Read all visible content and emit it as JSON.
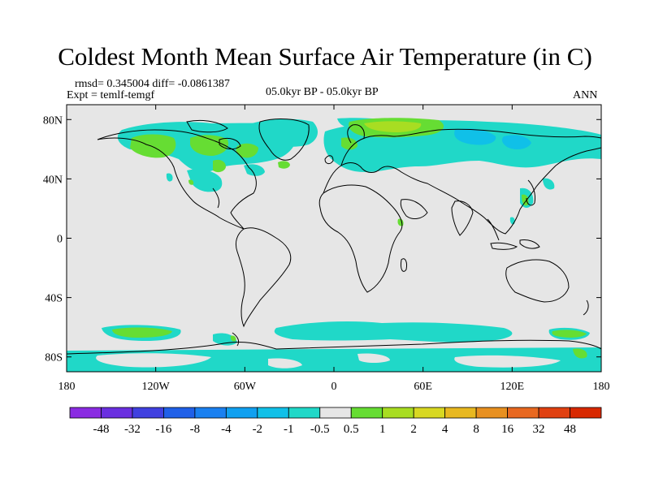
{
  "title": "Coldest Month Mean Surface Air Temperature (in C)",
  "stats": "rmsd= 0.345004 diff= -0.0861387",
  "experiment": "Expt = temlf-temgf",
  "period": "05.0kyr BP - 05.0kyr BP",
  "season": "ANN",
  "map": {
    "projection": "cylindrical equidistant",
    "background_color": "#e6e6e6",
    "lat_ticks": [
      "80N",
      "40N",
      "0",
      "40S",
      "80S"
    ],
    "lon_ticks": [
      "180",
      "120W",
      "60W",
      "0",
      "60E",
      "120E",
      "180"
    ]
  },
  "colorbar": {
    "labels": [
      "-48",
      "-32",
      "-16",
      "-8",
      "-4",
      "-2",
      "-1",
      "-0.5",
      "0.5",
      "1",
      "2",
      "4",
      "8",
      "16",
      "32",
      "48"
    ],
    "colors": [
      "#8a2be2",
      "#6a2fe0",
      "#4040e0",
      "#2060e8",
      "#1a80f0",
      "#10a0f0",
      "#10c0e8",
      "#20d8c8",
      "#e6e6e6",
      "#66dd33",
      "#a8dd22",
      "#d8d822",
      "#e8b820",
      "#e89020",
      "#e86820",
      "#e04010",
      "#d82800"
    ]
  }
}
